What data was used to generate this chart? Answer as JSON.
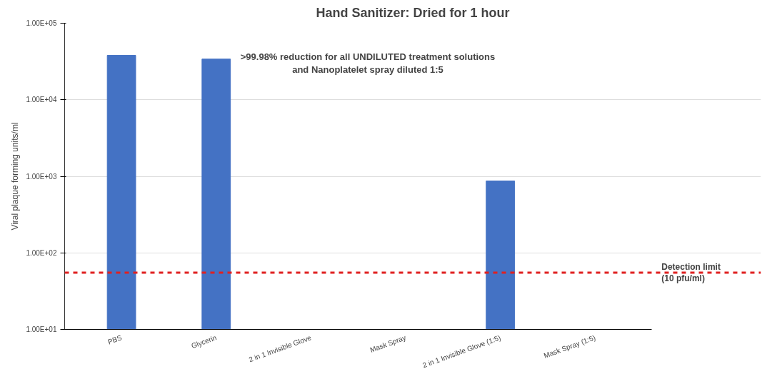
{
  "chart_data": {
    "type": "bar",
    "title": "Hand Sanitizer: Dried for 1 hour",
    "ylabel": "Viral plaque forming units/ml",
    "categories": [
      "PBS",
      "Glycerin",
      "2 in 1 Invisible Glove",
      "Mask Spray",
      "2 in 1 Invisible Glove (1:5)",
      "Mask Spray (1:5)"
    ],
    "values": [
      38000,
      34000,
      null,
      null,
      870,
      null
    ],
    "color": "#4472c4",
    "log": true,
    "ylim": [
      10,
      100000
    ],
    "yticks": [
      {
        "value": 10,
        "label": "1.00E+01"
      },
      {
        "value": 100,
        "label": "1.00E+02"
      },
      {
        "value": 1000,
        "label": "1.00E+03"
      },
      {
        "value": 10000,
        "label": "1.00E+04"
      },
      {
        "value": 100000,
        "label": "1.00E+05"
      }
    ],
    "grid": "y",
    "ref_lines": [
      {
        "axis": "y",
        "value": 55,
        "label": "Detection limit\n(10 pfu/ml)",
        "color": "#e02020",
        "line_style": "dashed"
      }
    ],
    "annotations": [
      ">99.98% reduction for all UNDILUTED treatment solutions\nand Nanoplatelet spray diluted 1:5"
    ]
  }
}
